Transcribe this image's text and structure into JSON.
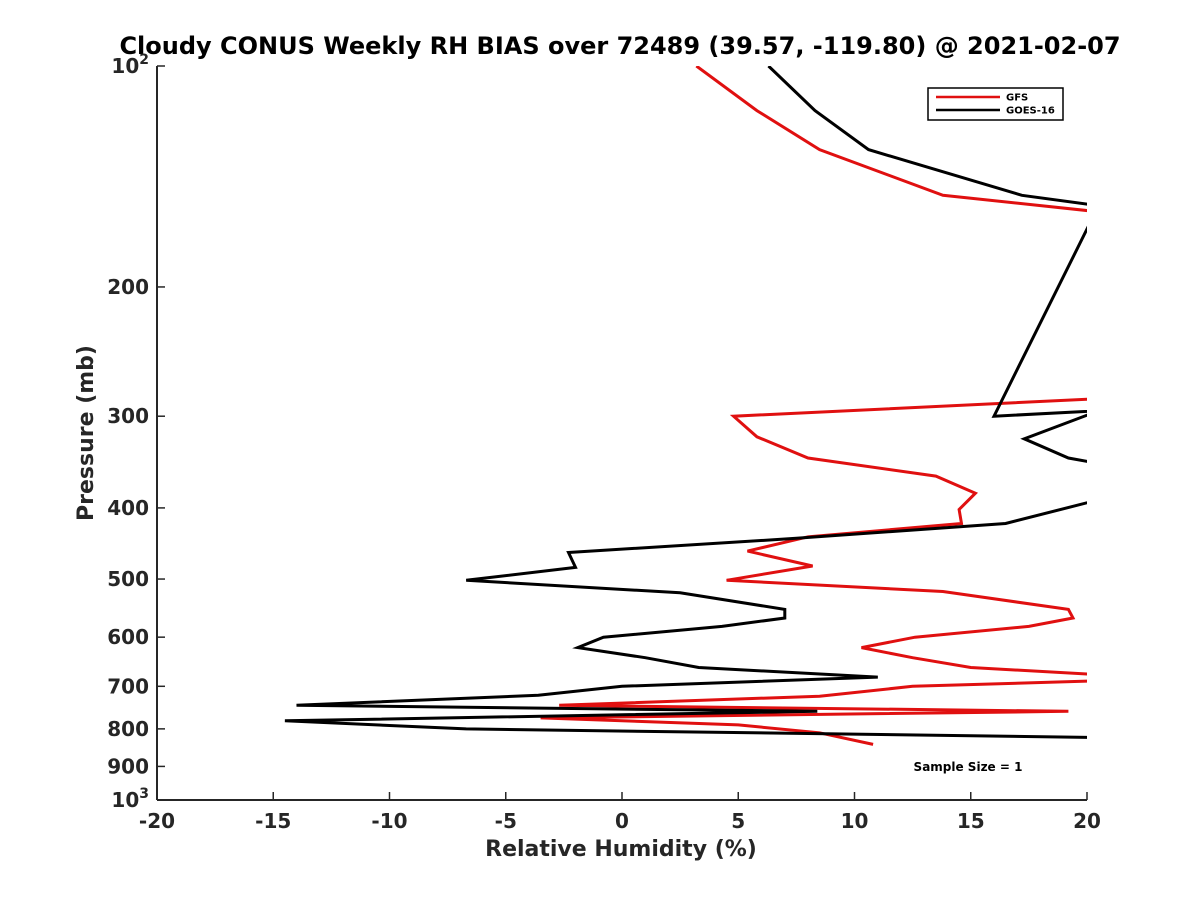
{
  "chart_data": {
    "type": "line",
    "title": "Cloudy CONUS Weekly RH BIAS over 72489 (39.57, -119.80) @ 2021-02-07",
    "xlabel": "Relative Humidity (%)",
    "ylabel": "Pressure (mb)",
    "xlim": [
      -20,
      20
    ],
    "ylim": [
      100,
      1000
    ],
    "yscale": "log",
    "y_reversed": true,
    "grid": false,
    "legend_position": "top-right",
    "xticks": [
      -20,
      -15,
      -10,
      -5,
      0,
      5,
      10,
      15,
      20
    ],
    "xtick_labels": [
      "-20",
      "-15",
      "-10",
      "-5",
      "0",
      "5",
      "10",
      "15",
      "20"
    ],
    "yticks": [
      100,
      200,
      300,
      400,
      500,
      600,
      700,
      800,
      900,
      1000
    ],
    "ytick_labels": [
      {
        "base": "10",
        "exp": "2"
      },
      {
        "base": "200",
        "exp": ""
      },
      {
        "base": "300",
        "exp": ""
      },
      {
        "base": "400",
        "exp": ""
      },
      {
        "base": "500",
        "exp": ""
      },
      {
        "base": "600",
        "exp": ""
      },
      {
        "base": "700",
        "exp": ""
      },
      {
        "base": "800",
        "exp": ""
      },
      {
        "base": "900",
        "exp": ""
      },
      {
        "base": "10",
        "exp": "3"
      }
    ],
    "annotation": "Sample Size = 1",
    "series": [
      {
        "name": "GFS",
        "color": "#e01010",
        "points": [
          [
            3.2,
            100
          ],
          [
            5.8,
            115
          ],
          [
            8.5,
            130
          ],
          [
            13.8,
            150
          ],
          [
            20.5,
            158
          ],
          [
            20.5,
            284
          ],
          [
            4.8,
            300
          ],
          [
            5.8,
            320
          ],
          [
            8.0,
            342
          ],
          [
            13.5,
            362
          ],
          [
            15.2,
            382
          ],
          [
            14.5,
            402
          ],
          [
            14.6,
            420
          ],
          [
            8.0,
            438
          ],
          [
            5.4,
            458
          ],
          [
            8.2,
            480
          ],
          [
            4.5,
            502
          ],
          [
            13.8,
            520
          ],
          [
            19.2,
            550
          ],
          [
            19.4,
            565
          ],
          [
            17.5,
            580
          ],
          [
            12.6,
            600
          ],
          [
            10.3,
            620
          ],
          [
            12.5,
            640
          ],
          [
            15.0,
            660
          ],
          [
            20.5,
            675
          ],
          [
            20.5,
            688
          ],
          [
            12.5,
            700
          ],
          [
            8.5,
            722
          ],
          [
            -2.7,
            743
          ],
          [
            19.2,
            757
          ],
          [
            -3.5,
            773
          ],
          [
            5.0,
            790
          ],
          [
            8.5,
            810
          ],
          [
            10.8,
            840
          ]
        ]
      },
      {
        "name": "GOES-16",
        "color": "#000000",
        "points": [
          [
            6.3,
            100
          ],
          [
            8.3,
            115
          ],
          [
            10.6,
            130
          ],
          [
            17.2,
            150
          ],
          [
            20.5,
            155
          ],
          [
            16.0,
            300
          ],
          [
            20.5,
            295
          ],
          [
            17.3,
            322
          ],
          [
            19.2,
            342
          ],
          [
            20.5,
            348
          ],
          [
            20.5,
            390
          ],
          [
            16.5,
            420
          ],
          [
            7.5,
            440
          ],
          [
            -2.3,
            460
          ],
          [
            -2.0,
            482
          ],
          [
            -6.7,
            502
          ],
          [
            2.5,
            522
          ],
          [
            7.0,
            550
          ],
          [
            7.0,
            565
          ],
          [
            4.3,
            580
          ],
          [
            -0.8,
            600
          ],
          [
            -1.9,
            620
          ],
          [
            1.0,
            640
          ],
          [
            3.3,
            660
          ],
          [
            11.0,
            680
          ],
          [
            0.0,
            700
          ],
          [
            -3.6,
            720
          ],
          [
            -14.0,
            743
          ],
          [
            8.4,
            757
          ],
          [
            -14.5,
            780
          ],
          [
            -6.7,
            800
          ],
          [
            20.5,
            822
          ]
        ]
      }
    ]
  }
}
